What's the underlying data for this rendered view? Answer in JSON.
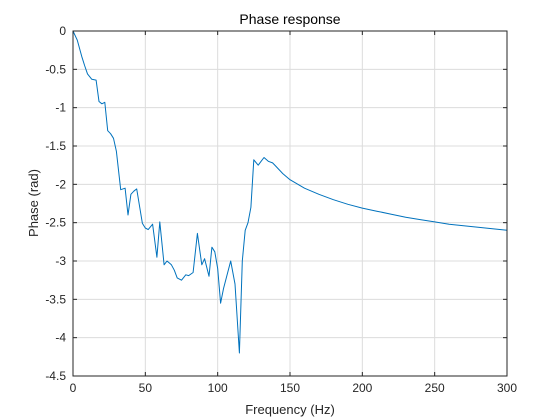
{
  "chart_data": {
    "type": "line",
    "title": "Phase response",
    "xlabel": "Frequency (Hz)",
    "ylabel": "Phase (rad)",
    "xlim": [
      0,
      300
    ],
    "ylim": [
      -4.5,
      0
    ],
    "xticks": [
      0,
      50,
      100,
      150,
      200,
      250,
      300
    ],
    "yticks": [
      0,
      -0.5,
      -1,
      -1.5,
      -2,
      -2.5,
      -3,
      -3.5,
      -4,
      -4.5
    ],
    "grid": true,
    "line_color": "#0072BD",
    "series": [
      {
        "x": [
          0,
          3,
          6,
          8,
          10,
          13,
          16,
          18,
          20,
          22,
          24,
          26,
          28,
          30,
          33,
          36,
          38,
          40,
          42,
          44,
          48,
          50,
          52,
          55,
          58,
          60,
          63,
          65,
          68,
          70,
          72,
          75,
          78,
          80,
          83,
          86,
          89,
          91,
          94,
          96,
          98,
          100,
          102,
          104,
          106,
          109,
          112,
          115,
          117,
          119,
          121,
          123,
          125,
          128,
          130,
          132,
          135,
          138,
          140,
          145,
          150,
          160,
          170,
          180,
          190,
          200,
          210,
          220,
          230,
          240,
          250,
          260,
          270,
          280,
          290,
          300
        ],
        "y": [
          0,
          -0.12,
          -0.33,
          -0.45,
          -0.56,
          -0.63,
          -0.64,
          -0.92,
          -0.95,
          -0.93,
          -1.3,
          -1.34,
          -1.4,
          -1.57,
          -2.07,
          -2.05,
          -2.4,
          -2.13,
          -2.09,
          -2.06,
          -2.51,
          -2.57,
          -2.59,
          -2.52,
          -2.95,
          -2.49,
          -3.05,
          -3.0,
          -3.05,
          -3.12,
          -3.22,
          -3.25,
          -3.18,
          -3.19,
          -3.15,
          -2.64,
          -3.05,
          -2.97,
          -3.2,
          -2.82,
          -2.88,
          -3.1,
          -3.55,
          -3.36,
          -3.22,
          -3.0,
          -3.3,
          -4.2,
          -3.0,
          -2.6,
          -2.5,
          -2.3,
          -1.68,
          -1.75,
          -1.7,
          -1.65,
          -1.7,
          -1.72,
          -1.76,
          -1.86,
          -1.94,
          -2.05,
          -2.13,
          -2.2,
          -2.26,
          -2.31,
          -2.35,
          -2.39,
          -2.43,
          -2.46,
          -2.49,
          -2.52,
          -2.54,
          -2.56,
          -2.58,
          -2.6
        ]
      }
    ]
  }
}
